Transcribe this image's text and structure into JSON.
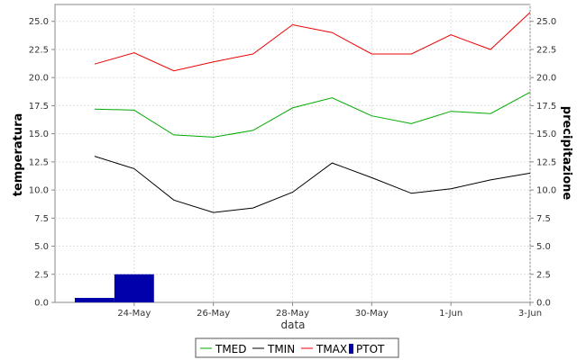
{
  "chart_data": {
    "type": "line",
    "title": "",
    "xlabel": "data",
    "ylabel": "temperatura",
    "y2label": "precipitazione",
    "dates": [
      "2014-05-23",
      "2014-05-24",
      "2014-05-25",
      "2014-05-26",
      "2014-05-27",
      "2014-05-28",
      "2014-05-29",
      "2014-05-30",
      "2014-05-31",
      "2014-06-01",
      "2014-06-02",
      "2014-06-03"
    ],
    "x_tick_labels": [
      "24-May",
      "26-May",
      "28-May",
      "30-May",
      "1-Jun",
      "3-Jun"
    ],
    "x_tick_dates": [
      "2014-05-24",
      "2014-05-26",
      "2014-05-28",
      "2014-05-30",
      "2014-06-01",
      "2014-06-03"
    ],
    "x_range": [
      "2014-05-22",
      "2014-06-03"
    ],
    "ylim": [
      0,
      26.5
    ],
    "y2lim": [
      0,
      26.5
    ],
    "y_ticks": [
      "0.0",
      "2.5",
      "5.0",
      "7.5",
      "10.0",
      "12.5",
      "15.0",
      "17.5",
      "20.0",
      "22.5",
      "25.0"
    ],
    "grid": true,
    "legend_position": "bottom",
    "series": [
      {
        "name": "TMED",
        "kind": "line",
        "color": "#00aa00",
        "values": [
          17.2,
          17.1,
          14.9,
          14.7,
          15.3,
          17.3,
          18.2,
          16.6,
          15.9,
          17.0,
          16.8,
          18.7
        ]
      },
      {
        "name": "TMIN",
        "kind": "line",
        "color": "#000000",
        "values": [
          13.0,
          11.9,
          9.1,
          8.0,
          8.4,
          9.8,
          12.4,
          11.1,
          9.7,
          10.1,
          10.9,
          11.5
        ]
      },
      {
        "name": "TMAX",
        "kind": "line",
        "color": "#ee0000",
        "values": [
          21.2,
          22.2,
          20.6,
          21.4,
          22.1,
          24.7,
          24.0,
          22.1,
          22.1,
          23.8,
          22.5,
          25.8
        ]
      },
      {
        "name": "PTOT",
        "kind": "bar",
        "color": "#0000aa",
        "values": [
          0.4,
          2.5,
          null,
          null,
          null,
          null,
          null,
          null,
          null,
          null,
          null,
          null
        ]
      }
    ]
  }
}
